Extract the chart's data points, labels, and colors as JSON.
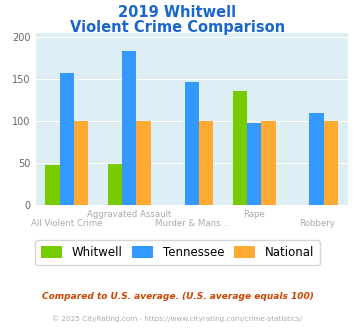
{
  "title_line1": "2019 Whitwell",
  "title_line2": "Violent Crime Comparison",
  "whitwell": [
    47,
    49,
    0,
    136,
    0
  ],
  "tennessee": [
    157,
    183,
    147,
    98,
    110
  ],
  "national": [
    100,
    100,
    100,
    100,
    100
  ],
  "color_whitwell": "#77cc00",
  "color_tennessee": "#3399ff",
  "color_national": "#ffaa33",
  "ylim": [
    0,
    205
  ],
  "yticks": [
    0,
    50,
    100,
    150,
    200
  ],
  "plot_bg": "#ddeef5",
  "title_color": "#1a66cc",
  "label_color_top": "#aaaaaa",
  "label_color_bot": "#aaaaaa",
  "footer1": "Compared to U.S. average. (U.S. average equals 100)",
  "footer2": "© 2025 CityRating.com - https://www.cityrating.com/crime-statistics/",
  "footer1_color": "#cc4400",
  "footer2_color": "#aaaaaa",
  "legend_labels": [
    "Whitwell",
    "Tennessee",
    "National"
  ],
  "x_top": [
    "",
    "Aggravated Assault",
    "",
    "Rape",
    ""
  ],
  "x_bot": [
    "All Violent Crime",
    "",
    "Murder & Mans...",
    "",
    "Robbery"
  ],
  "bar_width": 0.23
}
